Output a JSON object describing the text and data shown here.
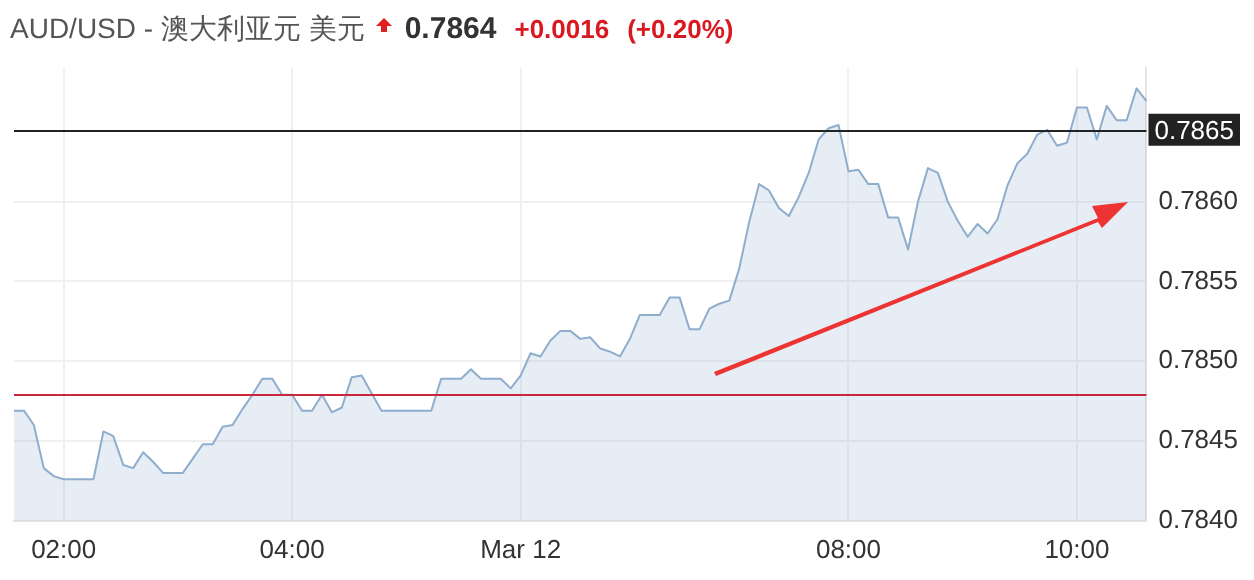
{
  "chart_data": {
    "type": "area",
    "title": "AUD/USD - 澳大利亚元 美元",
    "annotations": [
      "0.7864",
      "+0.0016",
      "(+0.20%)"
    ],
    "categories": [
      null,
      null,
      null,
      null,
      null,
      "02:00",
      null,
      null,
      null,
      null,
      null,
      null,
      null,
      null,
      null,
      null,
      null,
      null,
      null,
      null,
      null,
      null,
      null,
      null,
      null,
      null,
      null,
      null,
      "04:00",
      null,
      null,
      null,
      null,
      null,
      null,
      null,
      null,
      null,
      null,
      null,
      null,
      null,
      null,
      null,
      null,
      null,
      null,
      null,
      null,
      null,
      null,
      "Mar 12",
      null,
      null,
      null,
      null,
      null,
      null,
      null,
      null,
      null,
      null,
      null,
      null,
      null,
      null,
      null,
      null,
      null,
      null,
      null,
      null,
      null,
      null,
      null,
      null,
      null,
      null,
      null,
      null,
      null,
      null,
      null,
      null,
      "08:00",
      null,
      null,
      null,
      null,
      null,
      null,
      null,
      null,
      null,
      null,
      null,
      null,
      null,
      null,
      null,
      null,
      null,
      null,
      null,
      null,
      null,
      null,
      "10:00",
      null,
      null,
      null,
      null,
      null,
      null,
      null
    ],
    "series": [
      {
        "color": "#8fadcc",
        "values": [
          0.78469,
          0.78469,
          0.7846,
          0.78433,
          0.78428,
          0.78426,
          0.78426,
          0.78426,
          0.78426,
          0.78456,
          0.78453,
          0.78435,
          0.78433,
          0.78443,
          0.78437,
          0.7843,
          0.7843,
          0.7843,
          0.78439,
          0.78448,
          0.78448,
          0.78459,
          0.7846,
          0.7847,
          0.78479,
          0.78489,
          0.78489,
          0.78479,
          0.78479,
          0.78469,
          0.78469,
          0.78479,
          0.78468,
          0.78471,
          0.7849,
          0.78491,
          0.7848,
          0.78469,
          0.78469,
          0.78469,
          0.78469,
          0.78469,
          0.78469,
          0.78489,
          0.78489,
          0.78489,
          0.78495,
          0.78489,
          0.78489,
          0.78489,
          0.78483,
          0.78491,
          0.78505,
          0.78503,
          0.78513,
          0.78519,
          0.78519,
          0.78514,
          0.78515,
          0.78508,
          0.78506,
          0.78503,
          0.78514,
          0.78529,
          0.78529,
          0.78529,
          0.7854,
          0.7854,
          0.7852,
          0.7852,
          0.78533,
          0.78536,
          0.78538,
          0.78558,
          0.78587,
          0.78611,
          0.78607,
          0.78596,
          0.78591,
          0.78603,
          0.78618,
          0.78639,
          0.78646,
          0.78648,
          0.78619,
          0.7862,
          0.78611,
          0.78611,
          0.7859,
          0.7859,
          0.7857,
          0.786,
          0.78621,
          0.78618,
          0.786,
          0.78588,
          0.78578,
          0.78586,
          0.7858,
          0.78589,
          0.7861,
          0.78624,
          0.7863,
          0.78642,
          0.78645,
          0.78635,
          0.78637,
          0.78659,
          0.78659,
          0.78639,
          0.7866,
          0.78651,
          0.78651,
          0.78671,
          0.78663
        ]
      }
    ],
    "ylim": [
      0.784,
      0.78684
    ],
    "yticks": [
      {
        "value": 0.784,
        "label": "0.7840"
      },
      {
        "value": 0.7845,
        "label": "0.7845"
      },
      {
        "value": 0.785,
        "label": "0.7850"
      },
      {
        "value": 0.7855,
        "label": "0.7855"
      },
      {
        "value": 0.786,
        "label": "0.7860"
      }
    ],
    "ref_lines": [
      {
        "axis": "y",
        "value": 0.78645,
        "label": "0.7865",
        "color": "#222222"
      },
      {
        "axis": "y",
        "value": 0.7848,
        "color": "#c8283c"
      }
    ],
    "grid": true,
    "legend": false
  }
}
